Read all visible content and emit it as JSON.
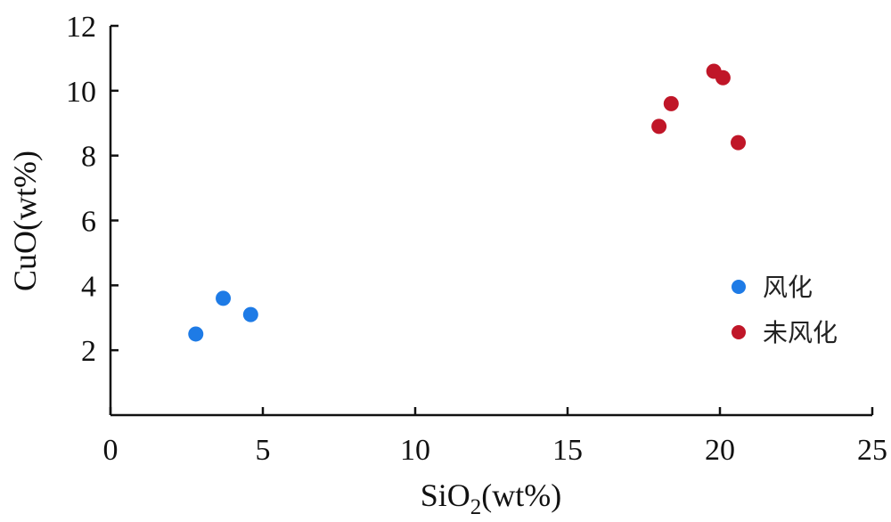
{
  "chart_data": {
    "type": "scatter",
    "title": "",
    "xlabel": {
      "main": "SiO",
      "sub": "2",
      "rest": "(wt%)"
    },
    "ylabel": "CuO(wt%)",
    "xlim": [
      0,
      25
    ],
    "ylim": [
      0,
      12
    ],
    "xticks": [
      0,
      5,
      10,
      15,
      20,
      25
    ],
    "yticks": [
      2,
      4,
      6,
      8,
      10,
      12
    ],
    "grid": false,
    "legend_position": "right",
    "series": [
      {
        "name": "风化",
        "color": "#1e7be6",
        "points": [
          {
            "x": 2.8,
            "y": 2.5
          },
          {
            "x": 3.7,
            "y": 3.6
          },
          {
            "x": 4.6,
            "y": 3.1
          }
        ]
      },
      {
        "name": "未风化",
        "color": "#c01628",
        "points": [
          {
            "x": 18.0,
            "y": 8.9
          },
          {
            "x": 18.4,
            "y": 9.6
          },
          {
            "x": 19.8,
            "y": 10.6
          },
          {
            "x": 20.1,
            "y": 10.4
          },
          {
            "x": 20.6,
            "y": 8.4
          }
        ]
      }
    ]
  }
}
